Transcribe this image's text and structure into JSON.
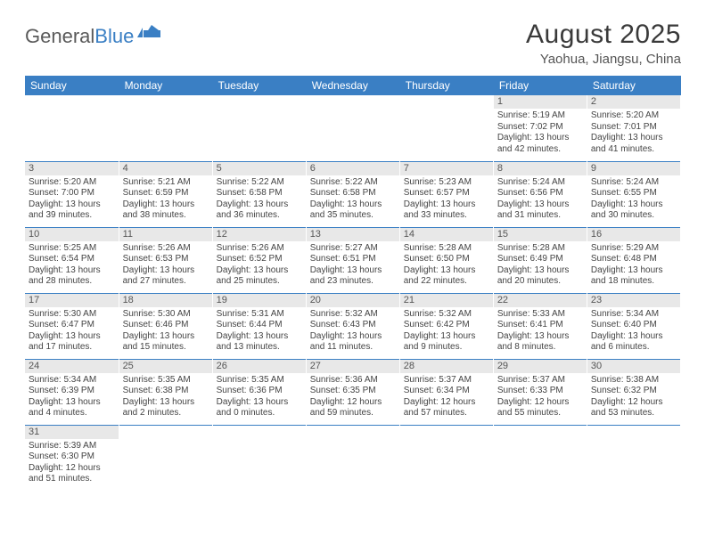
{
  "logo": {
    "text1": "General",
    "text2": "Blue"
  },
  "title": "August 2025",
  "subtitle": "Yaohua, Jiangsu, China",
  "colors": {
    "header_bg": "#3a7fc4",
    "header_fg": "#ffffff",
    "daynum_bg": "#e8e8e8",
    "row_border": "#3a7fc4",
    "text": "#444444"
  },
  "weekdays": [
    "Sunday",
    "Monday",
    "Tuesday",
    "Wednesday",
    "Thursday",
    "Friday",
    "Saturday"
  ],
  "firstWeekdayIndex": 5,
  "days": [
    {
      "n": 1,
      "sunrise": "5:19 AM",
      "sunset": "7:02 PM",
      "daylight": "13 hours and 42 minutes."
    },
    {
      "n": 2,
      "sunrise": "5:20 AM",
      "sunset": "7:01 PM",
      "daylight": "13 hours and 41 minutes."
    },
    {
      "n": 3,
      "sunrise": "5:20 AM",
      "sunset": "7:00 PM",
      "daylight": "13 hours and 39 minutes."
    },
    {
      "n": 4,
      "sunrise": "5:21 AM",
      "sunset": "6:59 PM",
      "daylight": "13 hours and 38 minutes."
    },
    {
      "n": 5,
      "sunrise": "5:22 AM",
      "sunset": "6:58 PM",
      "daylight": "13 hours and 36 minutes."
    },
    {
      "n": 6,
      "sunrise": "5:22 AM",
      "sunset": "6:58 PM",
      "daylight": "13 hours and 35 minutes."
    },
    {
      "n": 7,
      "sunrise": "5:23 AM",
      "sunset": "6:57 PM",
      "daylight": "13 hours and 33 minutes."
    },
    {
      "n": 8,
      "sunrise": "5:24 AM",
      "sunset": "6:56 PM",
      "daylight": "13 hours and 31 minutes."
    },
    {
      "n": 9,
      "sunrise": "5:24 AM",
      "sunset": "6:55 PM",
      "daylight": "13 hours and 30 minutes."
    },
    {
      "n": 10,
      "sunrise": "5:25 AM",
      "sunset": "6:54 PM",
      "daylight": "13 hours and 28 minutes."
    },
    {
      "n": 11,
      "sunrise": "5:26 AM",
      "sunset": "6:53 PM",
      "daylight": "13 hours and 27 minutes."
    },
    {
      "n": 12,
      "sunrise": "5:26 AM",
      "sunset": "6:52 PM",
      "daylight": "13 hours and 25 minutes."
    },
    {
      "n": 13,
      "sunrise": "5:27 AM",
      "sunset": "6:51 PM",
      "daylight": "13 hours and 23 minutes."
    },
    {
      "n": 14,
      "sunrise": "5:28 AM",
      "sunset": "6:50 PM",
      "daylight": "13 hours and 22 minutes."
    },
    {
      "n": 15,
      "sunrise": "5:28 AM",
      "sunset": "6:49 PM",
      "daylight": "13 hours and 20 minutes."
    },
    {
      "n": 16,
      "sunrise": "5:29 AM",
      "sunset": "6:48 PM",
      "daylight": "13 hours and 18 minutes."
    },
    {
      "n": 17,
      "sunrise": "5:30 AM",
      "sunset": "6:47 PM",
      "daylight": "13 hours and 17 minutes."
    },
    {
      "n": 18,
      "sunrise": "5:30 AM",
      "sunset": "6:46 PM",
      "daylight": "13 hours and 15 minutes."
    },
    {
      "n": 19,
      "sunrise": "5:31 AM",
      "sunset": "6:44 PM",
      "daylight": "13 hours and 13 minutes."
    },
    {
      "n": 20,
      "sunrise": "5:32 AM",
      "sunset": "6:43 PM",
      "daylight": "13 hours and 11 minutes."
    },
    {
      "n": 21,
      "sunrise": "5:32 AM",
      "sunset": "6:42 PM",
      "daylight": "13 hours and 9 minutes."
    },
    {
      "n": 22,
      "sunrise": "5:33 AM",
      "sunset": "6:41 PM",
      "daylight": "13 hours and 8 minutes."
    },
    {
      "n": 23,
      "sunrise": "5:34 AM",
      "sunset": "6:40 PM",
      "daylight": "13 hours and 6 minutes."
    },
    {
      "n": 24,
      "sunrise": "5:34 AM",
      "sunset": "6:39 PM",
      "daylight": "13 hours and 4 minutes."
    },
    {
      "n": 25,
      "sunrise": "5:35 AM",
      "sunset": "6:38 PM",
      "daylight": "13 hours and 2 minutes."
    },
    {
      "n": 26,
      "sunrise": "5:35 AM",
      "sunset": "6:36 PM",
      "daylight": "13 hours and 0 minutes."
    },
    {
      "n": 27,
      "sunrise": "5:36 AM",
      "sunset": "6:35 PM",
      "daylight": "12 hours and 59 minutes."
    },
    {
      "n": 28,
      "sunrise": "5:37 AM",
      "sunset": "6:34 PM",
      "daylight": "12 hours and 57 minutes."
    },
    {
      "n": 29,
      "sunrise": "5:37 AM",
      "sunset": "6:33 PM",
      "daylight": "12 hours and 55 minutes."
    },
    {
      "n": 30,
      "sunrise": "5:38 AM",
      "sunset": "6:32 PM",
      "daylight": "12 hours and 53 minutes."
    },
    {
      "n": 31,
      "sunrise": "5:39 AM",
      "sunset": "6:30 PM",
      "daylight": "12 hours and 51 minutes."
    }
  ],
  "labels": {
    "sunrise": "Sunrise:",
    "sunset": "Sunset:",
    "daylight": "Daylight:"
  }
}
